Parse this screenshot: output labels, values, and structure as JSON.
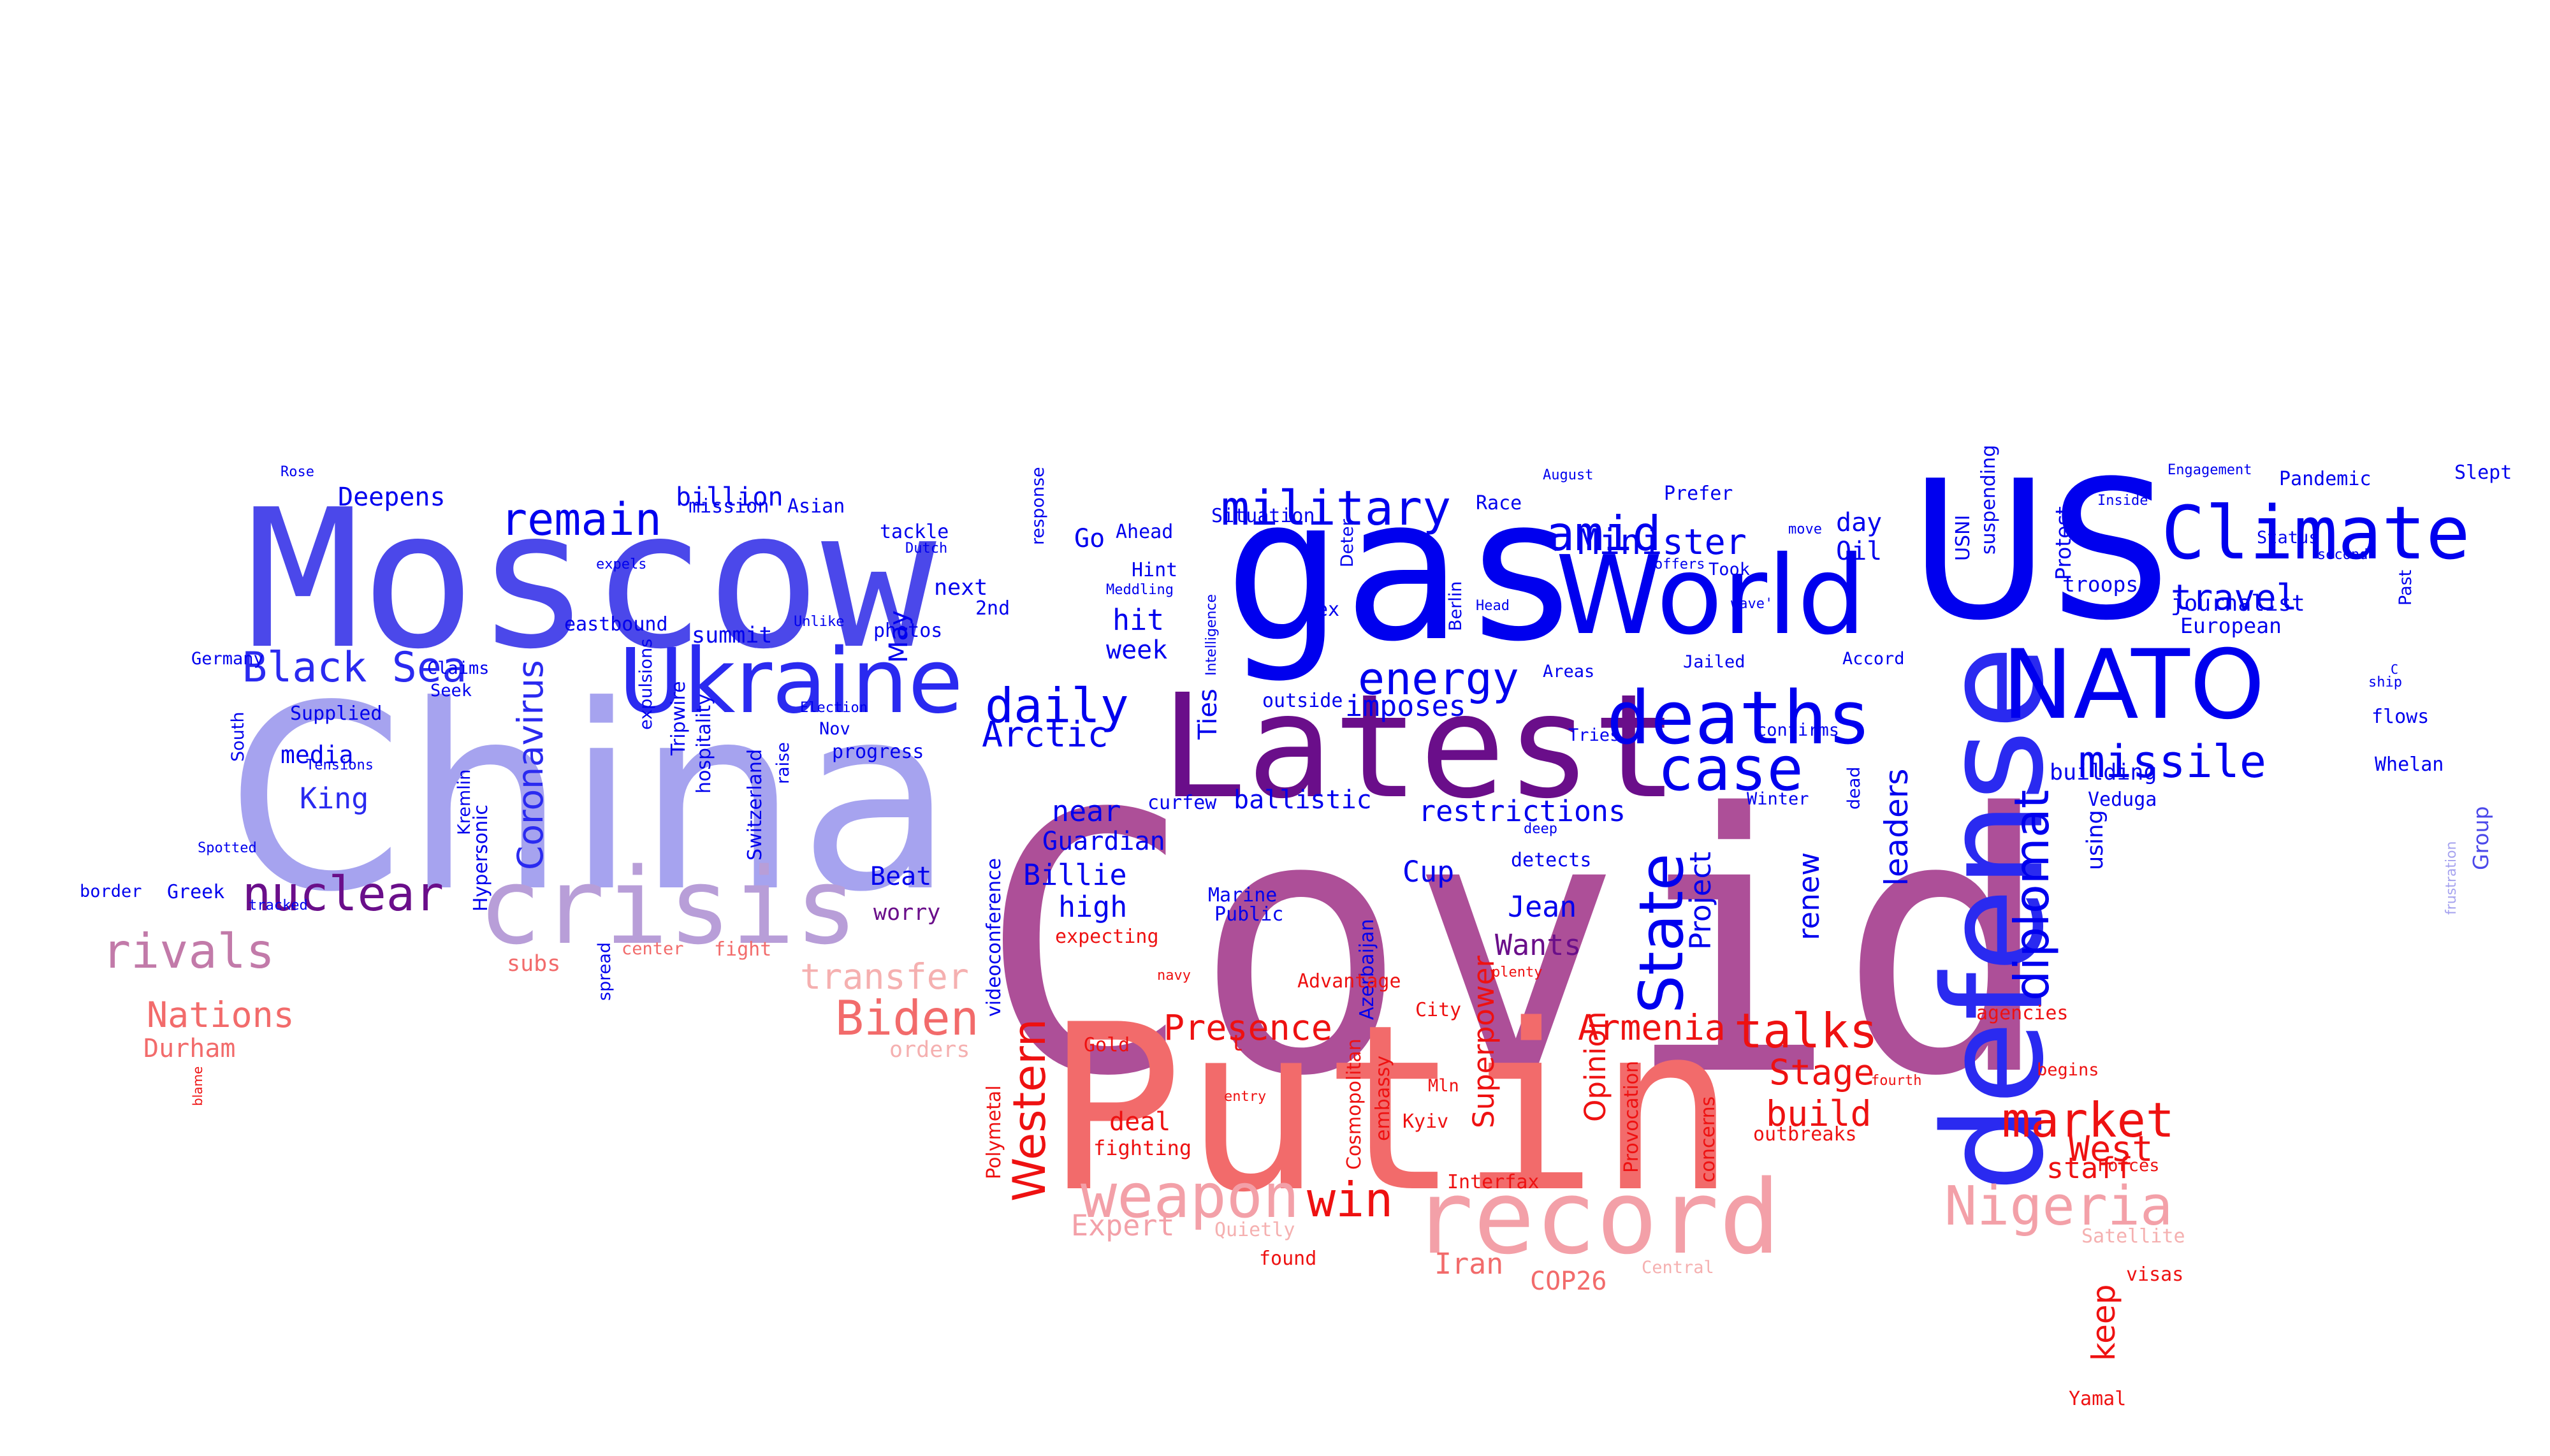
{
  "colors": {
    "blue": "#0000ee",
    "indigo": "#4b48ea",
    "lavender": "#a6a3ef",
    "lilac": "#b89ed8",
    "purple": "#6a0e8a",
    "plum": "#8a4aa0",
    "magenta": "#ad4f98",
    "mauve": "#c27aa9",
    "salmon": "#f26b6b",
    "pink": "#f3a0a8",
    "red": "#ee1111",
    "lightred": "#f5b0b0"
  },
  "words": [
    {
      "id": "covid",
      "text": "Covid",
      "color": "#ad4f98"
    },
    {
      "id": "china",
      "text": "China",
      "color": "#a6a3ef"
    },
    {
      "id": "putin",
      "text": "Putin",
      "color": "#f26b6b"
    },
    {
      "id": "moscow",
      "text": "Moscow",
      "color": "#4b48ea"
    },
    {
      "id": "gas",
      "text": "gas",
      "color": "#0000ee"
    },
    {
      "id": "us",
      "text": "US",
      "color": "#0000ee"
    },
    {
      "id": "latest",
      "text": "Latest",
      "color": "#6a0e8a"
    },
    {
      "id": "defense",
      "text": "defense",
      "color": "#2a2af0"
    },
    {
      "id": "world",
      "text": "World",
      "color": "#0000ee"
    },
    {
      "id": "record",
      "text": "record",
      "color": "#f3a0a8"
    },
    {
      "id": "crisis",
      "text": "crisis",
      "color": "#b89ed8"
    },
    {
      "id": "ukraine",
      "text": "Ukraine",
      "color": "#2a2af0"
    },
    {
      "id": "nato",
      "text": "NATO",
      "color": "#0000ee"
    },
    {
      "id": "climate",
      "text": "Climate",
      "color": "#0000ee"
    },
    {
      "id": "deaths",
      "text": "deaths",
      "color": "#0000ee"
    },
    {
      "id": "case",
      "text": "case",
      "color": "#0000ee"
    },
    {
      "id": "nigeria",
      "text": "Nigeria",
      "color": "#f3a0a8"
    },
    {
      "id": "weapon",
      "text": "weapon",
      "color": "#f3a0a8"
    },
    {
      "id": "state",
      "text": "State",
      "color": "#0000ee"
    },
    {
      "id": "diplomat",
      "text": "diplomat",
      "color": "#0000ee"
    },
    {
      "id": "missile",
      "text": "missile",
      "color": "#0000ee"
    },
    {
      "id": "market",
      "text": "market",
      "color": "#ee1111"
    },
    {
      "id": "military",
      "text": "military",
      "color": "#0000ee"
    },
    {
      "id": "remain",
      "text": "remain",
      "color": "#0000ee"
    },
    {
      "id": "talks",
      "text": "talks",
      "color": "#ee1111"
    },
    {
      "id": "amid",
      "text": "amid",
      "color": "#0000ee"
    },
    {
      "id": "energy",
      "text": "energy",
      "color": "#0000ee"
    },
    {
      "id": "daily",
      "text": "daily",
      "color": "#0000ee"
    },
    {
      "id": "biden",
      "text": "Biden",
      "color": "#f26b6b"
    },
    {
      "id": "western",
      "text": "Western",
      "color": "#ee1111"
    },
    {
      "id": "rivals",
      "text": "rivals",
      "color": "#c27aa9"
    },
    {
      "id": "nuclear",
      "text": "nuclear",
      "color": "#6a0e8a"
    },
    {
      "id": "black_sea",
      "text": "Black Sea",
      "color": "#2a2af0"
    },
    {
      "id": "win",
      "text": "win",
      "color": "#ee1111"
    },
    {
      "id": "coronavirus",
      "text": "Coronavirus",
      "color": "#2a2af0"
    },
    {
      "id": "leaders",
      "text": "leaders",
      "color": "#0000ee"
    },
    {
      "id": "minister",
      "text": "Minister",
      "color": "#0000ee"
    },
    {
      "id": "travel",
      "text": "travel",
      "color": "#0000ee"
    },
    {
      "id": "transfer",
      "text": "transfer",
      "color": "#f5b0b0"
    },
    {
      "id": "arctic",
      "text": "Arctic",
      "color": "#0000ee"
    },
    {
      "id": "stage",
      "text": "Stage",
      "color": "#ee1111"
    },
    {
      "id": "build",
      "text": "build",
      "color": "#ee1111"
    },
    {
      "id": "west",
      "text": "West",
      "color": "#ee1111"
    },
    {
      "id": "nations",
      "text": "Nations",
      "color": "#f26b6b"
    },
    {
      "id": "presence",
      "text": "Presence",
      "color": "#ee1111"
    },
    {
      "id": "armenia",
      "text": "Armenia",
      "color": "#ee1111"
    },
    {
      "id": "keep",
      "text": "keep",
      "color": "#ee1111"
    },
    {
      "id": "imposes",
      "text": "imposes",
      "color": "#0000ee"
    },
    {
      "id": "restrictions",
      "text": "restrictions",
      "color": "#0000ee"
    },
    {
      "id": "project",
      "text": "Project",
      "color": "#0000ee"
    },
    {
      "id": "renew",
      "text": "renew",
      "color": "#0000ee"
    },
    {
      "id": "superpower",
      "text": "Superpower",
      "color": "#ee1111"
    },
    {
      "id": "opinion",
      "text": "Opinion",
      "color": "#ee1111"
    },
    {
      "id": "jean",
      "text": "Jean",
      "color": "#0000ee"
    },
    {
      "id": "wants",
      "text": "Wants",
      "color": "#6a0e8a"
    },
    {
      "id": "cup",
      "text": "Cup",
      "color": "#0000ee"
    },
    {
      "id": "high",
      "text": "high",
      "color": "#0000ee"
    },
    {
      "id": "near",
      "text": "near",
      "color": "#0000ee"
    },
    {
      "id": "billie",
      "text": "Billie",
      "color": "#0000ee"
    },
    {
      "id": "guardian",
      "text": "Guardian",
      "color": "#0000ee"
    },
    {
      "id": "hit",
      "text": "hit",
      "color": "#0000ee"
    },
    {
      "id": "week",
      "text": "week",
      "color": "#0000ee"
    },
    {
      "id": "ties",
      "text": "Ties",
      "color": "#0000ee"
    },
    {
      "id": "ballistic",
      "text": "ballistic",
      "color": "#0000ee"
    },
    {
      "id": "staff",
      "text": "staff",
      "color": "#ee1111"
    },
    {
      "id": "expert",
      "text": "Expert",
      "color": "#f3a0a8"
    },
    {
      "id": "iran",
      "text": "Iran",
      "color": "#f26b6b"
    },
    {
      "id": "cop26",
      "text": "COP26",
      "color": "#f26b6b"
    },
    {
      "id": "deal",
      "text": "deal",
      "color": "#ee1111"
    },
    {
      "id": "fighting",
      "text": "fighting",
      "color": "#ee1111"
    },
    {
      "id": "durham",
      "text": "Durham",
      "color": "#f26b6b"
    },
    {
      "id": "billion",
      "text": "billion",
      "color": "#0000ee"
    },
    {
      "id": "deepens",
      "text": "Deepens",
      "color": "#0000ee"
    },
    {
      "id": "king",
      "text": "King",
      "color": "#2a2af0"
    },
    {
      "id": "media",
      "text": "media",
      "color": "#0000ee"
    },
    {
      "id": "beat",
      "text": "Beat",
      "color": "#0000ee"
    },
    {
      "id": "worry",
      "text": "worry",
      "color": "#6a0e8a"
    },
    {
      "id": "may",
      "text": "May",
      "color": "#0000ee"
    },
    {
      "id": "next",
      "text": "next",
      "color": "#0000ee"
    },
    {
      "id": "summit",
      "text": "summit",
      "color": "#0000ee"
    },
    {
      "id": "go",
      "text": "Go",
      "color": "#0000ee"
    },
    {
      "id": "oil",
      "text": "Oil",
      "color": "#0000ee"
    },
    {
      "id": "day",
      "text": "day",
      "color": "#0000ee"
    },
    {
      "id": "journalist",
      "text": "journalist",
      "color": "#0000ee"
    },
    {
      "id": "european",
      "text": "European",
      "color": "#0000ee"
    },
    {
      "id": "troops",
      "text": "troops",
      "color": "#0000ee"
    },
    {
      "id": "protest",
      "text": "Protest",
      "color": "#0000ee"
    },
    {
      "id": "usni",
      "text": "USNI",
      "color": "#0000ee"
    },
    {
      "id": "suspending",
      "text": "suspending",
      "color": "#0000ee"
    },
    {
      "id": "building",
      "text": "building",
      "color": "#0000ee"
    },
    {
      "id": "using",
      "text": "using",
      "color": "#0000ee"
    },
    {
      "id": "veduga",
      "text": "Veduga",
      "color": "#0000ee"
    },
    {
      "id": "group",
      "text": "Group",
      "color": "#4b48ea"
    },
    {
      "id": "frustration",
      "text": "frustration",
      "color": "#a6a3ef"
    },
    {
      "id": "whelan",
      "text": "Whelan",
      "color": "#0000ee"
    },
    {
      "id": "flows",
      "text": "flows",
      "color": "#0000ee"
    },
    {
      "id": "ship",
      "text": "ship",
      "color": "#0000ee"
    },
    {
      "id": "c",
      "text": "C",
      "color": "#0000ee"
    },
    {
      "id": "slept",
      "text": "Slept",
      "color": "#0000ee"
    },
    {
      "id": "pandemic",
      "text": "Pandemic",
      "color": "#0000ee"
    },
    {
      "id": "engagement",
      "text": "Engagement",
      "color": "#0000ee"
    },
    {
      "id": "inside",
      "text": "Inside",
      "color": "#0000ee"
    },
    {
      "id": "status",
      "text": "Status",
      "color": "#0000ee"
    },
    {
      "id": "second",
      "text": "second",
      "color": "#0000ee"
    },
    {
      "id": "past",
      "text": "Past",
      "color": "#0000ee"
    },
    {
      "id": "accord",
      "text": "Accord",
      "color": "#0000ee"
    },
    {
      "id": "confirms",
      "text": "confirms",
      "color": "#0000ee"
    },
    {
      "id": "jailed",
      "text": "Jailed",
      "color": "#0000ee"
    },
    {
      "id": "winter",
      "text": "Winter",
      "color": "#0000ee"
    },
    {
      "id": "dead",
      "text": "dead",
      "color": "#0000ee"
    },
    {
      "id": "tries",
      "text": "Tries",
      "color": "#0000ee"
    },
    {
      "id": "areas",
      "text": "Areas",
      "color": "#0000ee"
    },
    {
      "id": "prefer",
      "text": "Prefer",
      "color": "#0000ee"
    },
    {
      "id": "took",
      "text": "Took",
      "color": "#0000ee"
    },
    {
      "id": "offers",
      "text": "offers",
      "color": "#0000ee"
    },
    {
      "id": "wave",
      "text": "wave'",
      "color": "#0000ee"
    },
    {
      "id": "move",
      "text": "move",
      "color": "#0000ee"
    },
    {
      "id": "august",
      "text": "August",
      "color": "#0000ee"
    },
    {
      "id": "race",
      "text": "Race",
      "color": "#0000ee"
    },
    {
      "id": "head",
      "text": "Head",
      "color": "#0000ee"
    },
    {
      "id": "berlin",
      "text": "Berlin",
      "color": "#0000ee"
    },
    {
      "id": "deter",
      "text": "Deter",
      "color": "#0000ee"
    },
    {
      "id": "ex",
      "text": "ex",
      "color": "#0000ee"
    },
    {
      "id": "situation",
      "text": "Situation",
      "color": "#0000ee"
    },
    {
      "id": "ahead",
      "text": "Ahead",
      "color": "#0000ee"
    },
    {
      "id": "hint",
      "text": "Hint",
      "color": "#0000ee"
    },
    {
      "id": "meddling",
      "text": "Meddling",
      "color": "#0000ee"
    },
    {
      "id": "intelligence",
      "text": "Intelligence",
      "color": "#0000ee"
    },
    {
      "id": "outside",
      "text": "outside",
      "color": "#0000ee"
    },
    {
      "id": "curfew",
      "text": "curfew",
      "color": "#0000ee"
    },
    {
      "id": "marine",
      "text": "Marine",
      "color": "#0000ee"
    },
    {
      "id": "public",
      "text": "Public",
      "color": "#0000ee"
    },
    {
      "id": "azerbaijan",
      "text": "Azerbaijan",
      "color": "#0000ee"
    },
    {
      "id": "detects",
      "text": "detects",
      "color": "#0000ee"
    },
    {
      "id": "deep",
      "text": "deep",
      "color": "#0000ee"
    },
    {
      "id": "videoconference",
      "text": "videoconference",
      "color": "#0000ee"
    },
    {
      "id": "photos",
      "text": "photos",
      "color": "#0000ee"
    },
    {
      "id": "tackle",
      "text": "tackle",
      "color": "#0000ee"
    },
    {
      "id": "dutch",
      "text": "Dutch",
      "color": "#0000ee"
    },
    {
      "id": "response",
      "text": "response",
      "color": "#0000ee"
    },
    {
      "id": "2nd",
      "text": "2nd",
      "color": "#0000ee"
    },
    {
      "id": "unlike",
      "text": "Unlike",
      "color": "#0000ee"
    },
    {
      "id": "election",
      "text": "Election",
      "color": "#0000ee"
    },
    {
      "id": "nov",
      "text": "Nov",
      "color": "#0000ee"
    },
    {
      "id": "progress",
      "text": "progress",
      "color": "#0000ee"
    },
    {
      "id": "eastbound",
      "text": "eastbound",
      "color": "#0000ee"
    },
    {
      "id": "expulsions",
      "text": "expulsions",
      "color": "#0000ee"
    },
    {
      "id": "tripwire",
      "text": "Tripwire",
      "color": "#0000ee"
    },
    {
      "id": "hospitality",
      "text": "hospitality",
      "color": "#0000ee"
    },
    {
      "id": "switzerland",
      "text": "Switzerland",
      "color": "#0000ee"
    },
    {
      "id": "raise",
      "text": "raise",
      "color": "#0000ee"
    },
    {
      "id": "mission",
      "text": "mission",
      "color": "#0000ee"
    },
    {
      "id": "asian",
      "text": "Asian",
      "color": "#0000ee"
    },
    {
      "id": "rose",
      "text": "Rose",
      "color": "#0000ee"
    },
    {
      "id": "expels",
      "text": "expels",
      "color": "#0000ee"
    },
    {
      "id": "germany",
      "text": "Germany",
      "color": "#0000ee"
    },
    {
      "id": "claims",
      "text": "Claims",
      "color": "#0000ee"
    },
    {
      "id": "seek",
      "text": "Seek",
      "color": "#0000ee"
    },
    {
      "id": "supplied",
      "text": "Supplied",
      "color": "#0000ee"
    },
    {
      "id": "tensions",
      "text": "Tensions",
      "color": "#0000ee"
    },
    {
      "id": "south",
      "text": "South",
      "color": "#0000ee"
    },
    {
      "id": "kremlin",
      "text": "Kremlin",
      "color": "#0000ee"
    },
    {
      "id": "hypersonic",
      "text": "Hypersonic",
      "color": "#0000ee"
    },
    {
      "id": "spotted",
      "text": "Spotted",
      "color": "#0000ee"
    },
    {
      "id": "border",
      "text": "border",
      "color": "#0000ee"
    },
    {
      "id": "greek",
      "text": "Greek",
      "color": "#0000ee"
    },
    {
      "id": "tracked",
      "text": "tracked",
      "color": "#0000ee"
    },
    {
      "id": "spread",
      "text": "spread",
      "color": "#0000ee"
    },
    {
      "id": "subs",
      "text": "subs",
      "color": "#f26b6b"
    },
    {
      "id": "center",
      "text": "center",
      "color": "#f26b6b"
    },
    {
      "id": "fight",
      "text": "fight",
      "color": "#f26b6b"
    },
    {
      "id": "blame",
      "text": "blame",
      "color": "#ee1111"
    },
    {
      "id": "orders",
      "text": "orders",
      "color": "#f5b0b0"
    },
    {
      "id": "expecting",
      "text": "expecting",
      "color": "#ee1111"
    },
    {
      "id": "navy",
      "text": "navy",
      "color": "#ee1111"
    },
    {
      "id": "advantage",
      "text": "Advantage",
      "color": "#ee1111"
    },
    {
      "id": "city",
      "text": "City",
      "color": "#ee1111"
    },
    {
      "id": "plenty",
      "text": "plenty",
      "color": "#ee1111"
    },
    {
      "id": "gold",
      "text": "Gold",
      "color": "#ee1111"
    },
    {
      "id": "t",
      "text": "t",
      "color": "#ee1111"
    },
    {
      "id": "entry",
      "text": "entry",
      "color": "#ee1111"
    },
    {
      "id": "polymetal",
      "text": "Polymetal",
      "color": "#ee1111"
    },
    {
      "id": "cosmopolitan",
      "text": "Cosmopolitan",
      "color": "#ee1111"
    },
    {
      "id": "embassy",
      "text": "embassy",
      "color": "#ee1111"
    },
    {
      "id": "mln",
      "text": "Mln",
      "color": "#ee1111"
    },
    {
      "id": "kyiv",
      "text": "Kyiv",
      "color": "#ee1111"
    },
    {
      "id": "interfax",
      "text": "Interfax",
      "color": "#ee1111"
    },
    {
      "id": "provocation",
      "text": "Provocation",
      "color": "#ee1111"
    },
    {
      "id": "concerns",
      "text": "concerns",
      "color": "#ee1111"
    },
    {
      "id": "outbreaks",
      "text": "outbreaks",
      "color": "#ee1111"
    },
    {
      "id": "fourth",
      "text": "fourth",
      "color": "#ee1111"
    },
    {
      "id": "begins",
      "text": "begins",
      "color": "#ee1111"
    },
    {
      "id": "agencies",
      "text": "agencies",
      "color": "#ee1111"
    },
    {
      "id": "forces",
      "text": "Forces",
      "color": "#ee1111"
    },
    {
      "id": "satellite",
      "text": "Satellite",
      "color": "#f5b0b0"
    },
    {
      "id": "visas",
      "text": "visas",
      "color": "#ee1111"
    },
    {
      "id": "yamal",
      "text": "Yamal",
      "color": "#ee1111"
    },
    {
      "id": "central",
      "text": "Central",
      "color": "#f5b0b0"
    },
    {
      "id": "found",
      "text": "found",
      "color": "#ee1111"
    },
    {
      "id": "quietly",
      "text": "Quietly",
      "color": "#f5b0b0"
    }
  ]
}
